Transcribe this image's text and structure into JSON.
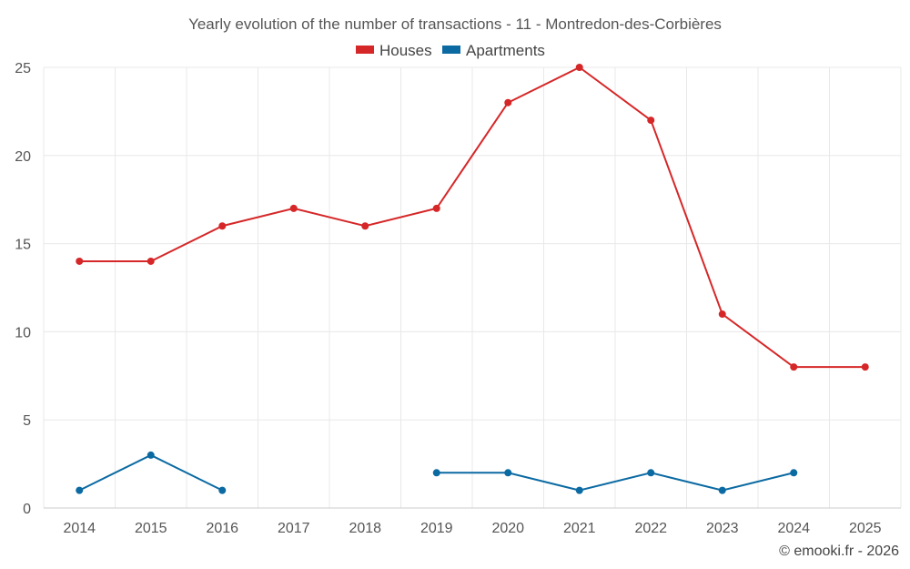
{
  "chart_data": {
    "type": "line",
    "title": "Yearly evolution of the number of transactions - 11 - Montredon-des-Corbières",
    "categories": [
      "2014",
      "2015",
      "2016",
      "2017",
      "2018",
      "2019",
      "2020",
      "2021",
      "2022",
      "2023",
      "2024",
      "2025"
    ],
    "ylim": [
      0,
      25
    ],
    "yticks": [
      0,
      5,
      10,
      15,
      20,
      25
    ],
    "grid": true,
    "legend_position": "top-center",
    "series": [
      {
        "name": "Houses",
        "color": "#d62728",
        "values": [
          14,
          14,
          16,
          17,
          16,
          17,
          23,
          25,
          22,
          11,
          8,
          8
        ]
      },
      {
        "name": "Apartments",
        "color": "#0b6aa2",
        "values": [
          1,
          3,
          1,
          null,
          null,
          2,
          2,
          1,
          2,
          1,
          2,
          null
        ]
      }
    ],
    "credit": "© emooki.fr - 2026"
  }
}
